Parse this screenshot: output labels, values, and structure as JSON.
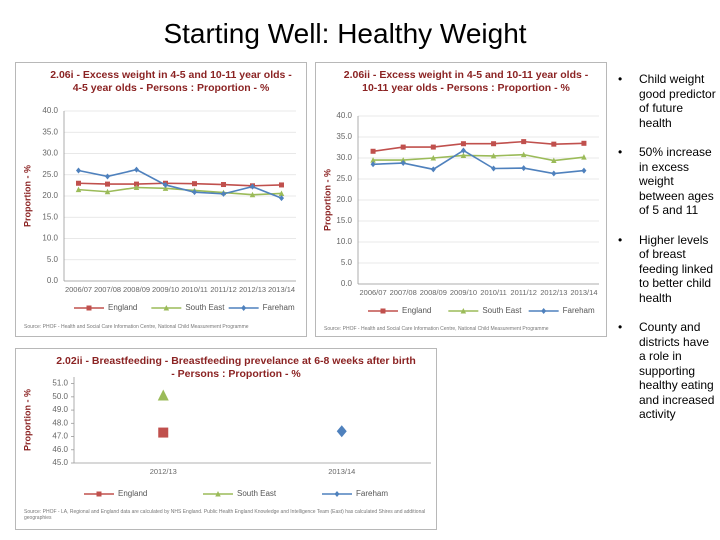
{
  "title": "Starting Well: Healthy Weight",
  "chart_data": [
    {
      "type": "line",
      "title": "2.06i - Excess weight in 4-5 and 10-11 year olds - 4-5 year olds - Persons : Proportion - %",
      "y_label": "Proportion - %",
      "categories": [
        "2006/07",
        "2007/08",
        "2008/09",
        "2009/10",
        "2010/11",
        "2011/12",
        "2012/13",
        "2013/14"
      ],
      "series": [
        {
          "name": "England",
          "color": "#c0504d",
          "values": [
            23.0,
            22.8,
            22.8,
            23.0,
            22.9,
            22.7,
            22.4,
            22.6
          ]
        },
        {
          "name": "South East",
          "color": "#9bbb59",
          "values": [
            21.5,
            21.0,
            22.0,
            21.8,
            21.3,
            20.8,
            20.3,
            20.6
          ]
        },
        {
          "name": "Fareham",
          "color": "#4f81bd",
          "values": [
            26.0,
            24.6,
            26.2,
            22.6,
            20.9,
            20.5,
            22.2,
            19.5
          ]
        }
      ],
      "ylim": [
        0,
        40
      ],
      "yticks": [
        {
          "value": 0,
          "label": "0.0"
        },
        {
          "value": 5,
          "label": "5.0"
        },
        {
          "value": 10,
          "label": "10.0"
        },
        {
          "value": 15,
          "label": "15.0"
        },
        {
          "value": 20,
          "label": "20.0"
        },
        {
          "value": 25,
          "label": "25.0"
        },
        {
          "value": 30,
          "label": "30.0"
        },
        {
          "value": 35,
          "label": "35.0"
        },
        {
          "value": 40,
          "label": "40.0"
        }
      ],
      "grid": true,
      "source": "Source: PHOF - Health and Social Care Information Centre, National Child Measurement Programme"
    },
    {
      "type": "line",
      "title": "2.06ii - Excess weight in 4-5 and 10-11 year olds - 10-11 year olds - Persons : Proportion - %",
      "y_label": "Proportion - %",
      "categories": [
        "2006/07",
        "2007/08",
        "2008/09",
        "2009/10",
        "2010/11",
        "2011/12",
        "2012/13",
        "2013/14"
      ],
      "series": [
        {
          "name": "England",
          "color": "#c0504d",
          "values": [
            31.6,
            32.6,
            32.6,
            33.4,
            33.4,
            33.9,
            33.3,
            33.5
          ]
        },
        {
          "name": "South East",
          "color": "#9bbb59",
          "values": [
            29.5,
            29.5,
            30.0,
            30.6,
            30.5,
            30.8,
            29.4,
            30.2
          ]
        },
        {
          "name": "Fareham",
          "color": "#4f81bd",
          "values": [
            28.5,
            28.8,
            27.3,
            31.8,
            27.5,
            27.6,
            26.3,
            27.0
          ]
        }
      ],
      "ylim": [
        0,
        40
      ],
      "yticks": [
        {
          "value": 0,
          "label": "0.0"
        },
        {
          "value": 5,
          "label": "5.0"
        },
        {
          "value": 10,
          "label": "10.0"
        },
        {
          "value": 15,
          "label": "15.0"
        },
        {
          "value": 20,
          "label": "20.0"
        },
        {
          "value": 25,
          "label": "25.0"
        },
        {
          "value": 30,
          "label": "30.0"
        },
        {
          "value": 35,
          "label": "35.0"
        },
        {
          "value": 40,
          "label": "40.0"
        }
      ],
      "grid": true,
      "source": "Source: PHOF - Health and Social Care Information Centre, National Child Measurement Programme"
    },
    {
      "type": "line",
      "title": "2.02ii - Breastfeeding - Breastfeeding prevelance at 6-8 weeks after birth - Persons : Proportion - %",
      "y_label": "Proportion - %",
      "categories": [
        "2012/13",
        "2013/14"
      ],
      "series": [
        {
          "name": "England",
          "color": "#c0504d",
          "values": [
            47.3,
            null
          ]
        },
        {
          "name": "South East",
          "color": "#9bbb59",
          "values": [
            50.1,
            null
          ]
        },
        {
          "name": "Fareham",
          "color": "#4f81bd",
          "values": [
            null,
            47.4
          ]
        }
      ],
      "ylim": [
        45,
        51.5
      ],
      "yticks": [
        {
          "value": 45,
          "label": "45.0"
        },
        {
          "value": 46,
          "label": "46.0"
        },
        {
          "value": 47,
          "label": "47.0"
        },
        {
          "value": 48,
          "label": "48.0"
        },
        {
          "value": 49,
          "label": "49.0"
        },
        {
          "value": 50,
          "label": "50.0"
        },
        {
          "value": 51,
          "label": "51.0"
        }
      ],
      "grid": false,
      "source": "Source: PHOF - LA, Regional and England data are calculated by NHS England. Public Health England Knowledge and Intelligence Team (East) has calculated Shires and additional geographies"
    }
  ],
  "bullets": [
    "Child weight good predictor of future health",
    "50% increase in excess weight between ages of 5 and 11",
    "Higher levels of breast feeding linked to better child health",
    "County and districts have a role in supporting healthy eating and increased activity"
  ]
}
